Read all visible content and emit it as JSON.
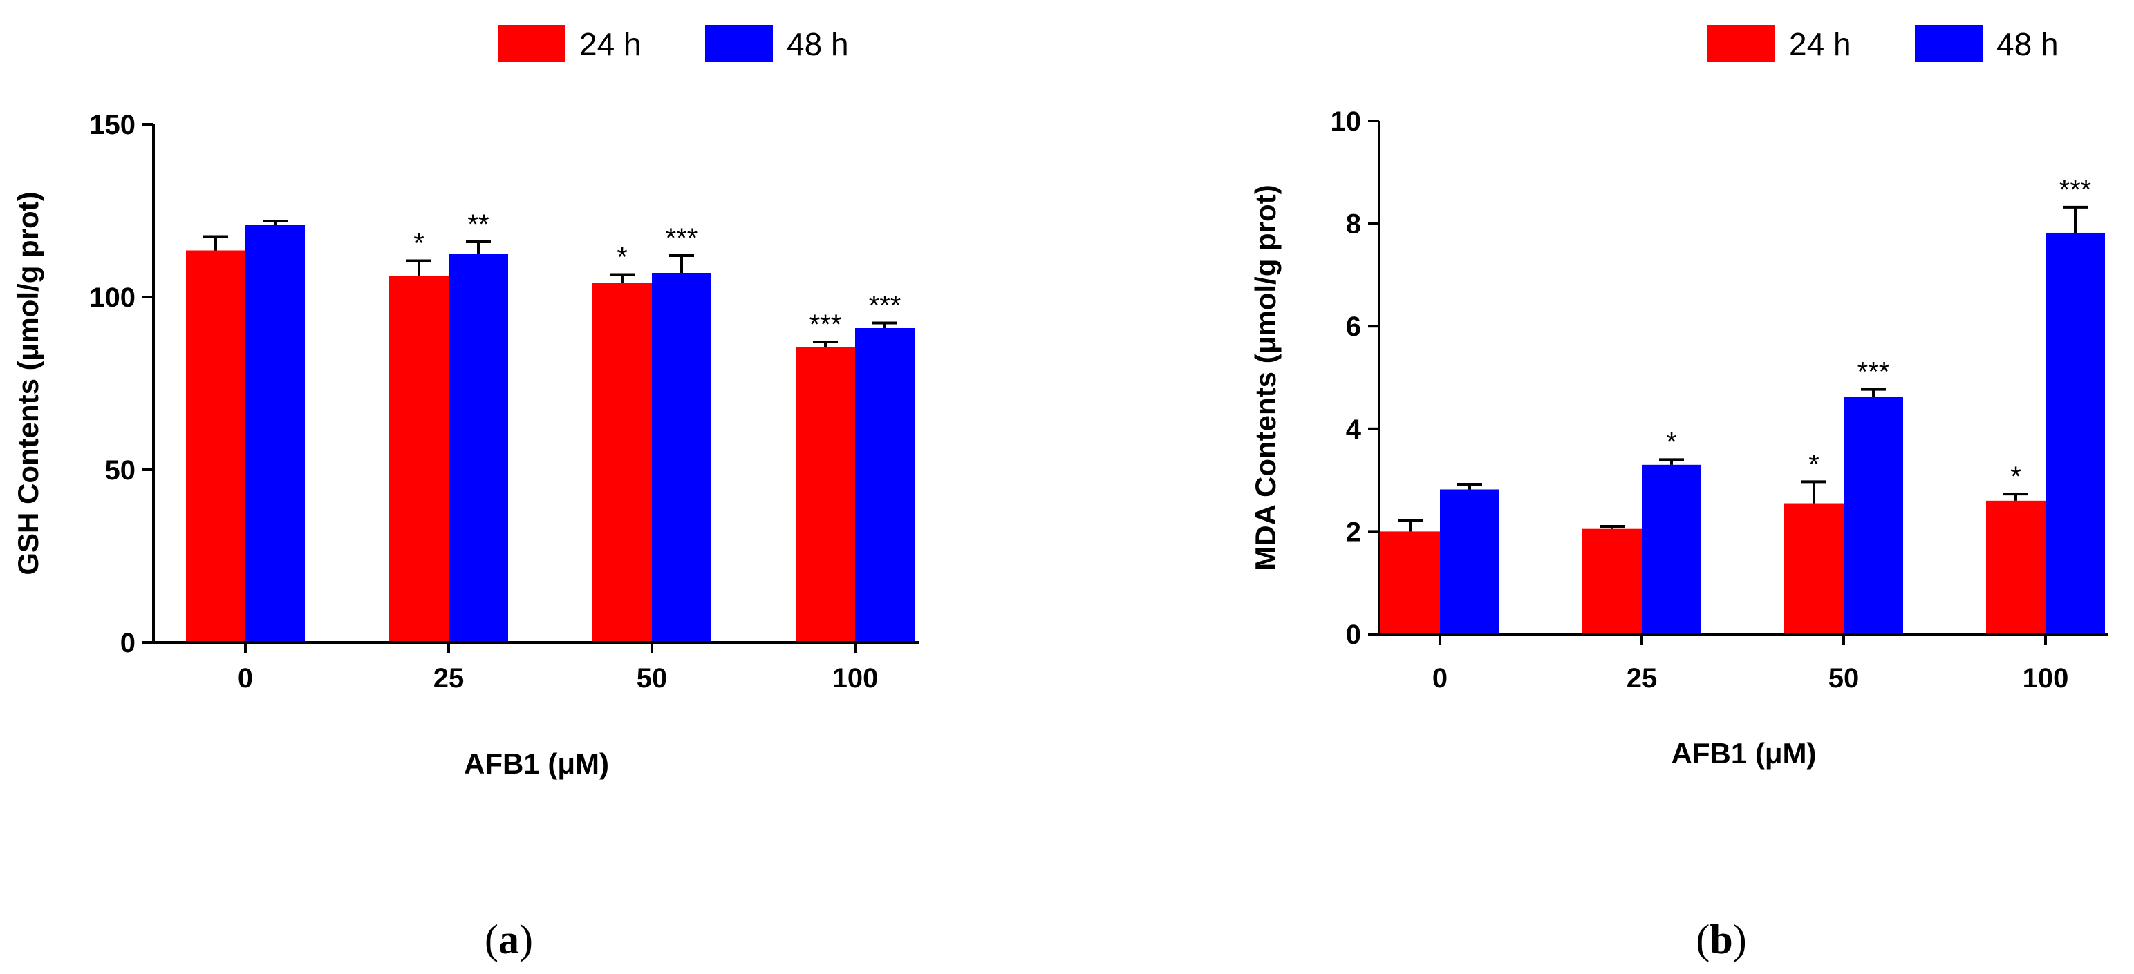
{
  "colors": {
    "series_24h": "#ff0000",
    "series_48h": "#0000ff",
    "axis": "#000000"
  },
  "chart_data": [
    {
      "id": "a",
      "type": "bar",
      "panel_label": "a",
      "xlabel": "AFB1 (μM)",
      "ylabel": "GSH Contents (μmol/g prot)",
      "ylim": [
        0,
        150
      ],
      "yticks": [
        0,
        50,
        100,
        150
      ],
      "categories": [
        "0",
        "25",
        "50",
        "100"
      ],
      "legend_position": "top-right",
      "series": [
        {
          "name": "24 h",
          "values": [
            113.5,
            106,
            104,
            85.5
          ],
          "errors": [
            4,
            4.5,
            2.5,
            1.5
          ],
          "significance": [
            "",
            "*",
            "*",
            "***"
          ]
        },
        {
          "name": "48 h",
          "values": [
            121,
            112.5,
            107,
            91
          ],
          "errors": [
            1,
            3.5,
            5,
            1.5
          ],
          "significance": [
            "",
            "**",
            "***",
            "***"
          ]
        }
      ]
    },
    {
      "id": "b",
      "type": "bar",
      "panel_label": "b",
      "xlabel": "AFB1 (μM)",
      "ylabel": "MDA Contents (μmol/g prot)",
      "ylim": [
        0,
        10
      ],
      "yticks": [
        0,
        2,
        4,
        6,
        8,
        10
      ],
      "categories": [
        "0",
        "25",
        "50",
        "100"
      ],
      "legend_position": "top-right",
      "series": [
        {
          "name": "24 h",
          "values": [
            2.0,
            2.05,
            2.55,
            2.6
          ],
          "errors": [
            0.22,
            0.05,
            0.42,
            0.13
          ],
          "significance": [
            "",
            "",
            "*",
            "*"
          ]
        },
        {
          "name": "48 h",
          "values": [
            2.82,
            3.3,
            4.62,
            7.82
          ],
          "errors": [
            0.1,
            0.1,
            0.15,
            0.5
          ],
          "significance": [
            "",
            "*",
            "***",
            "***"
          ]
        }
      ]
    }
  ]
}
